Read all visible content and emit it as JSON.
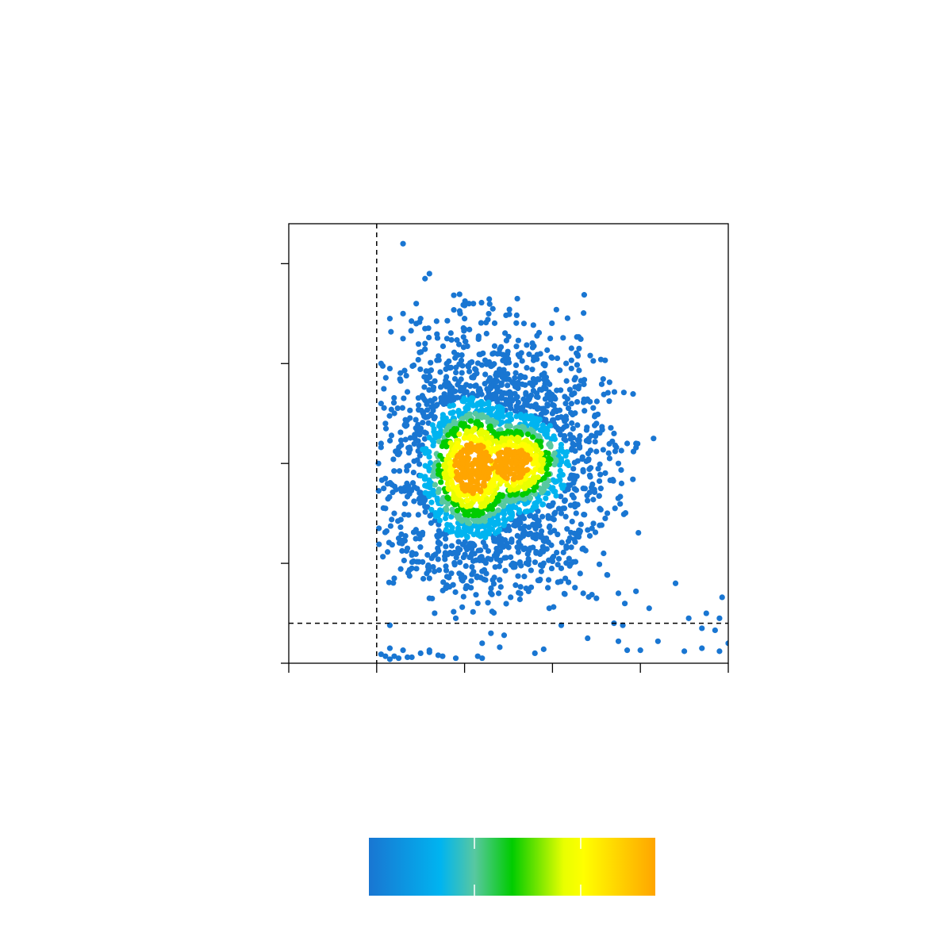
{
  "chart_data": {
    "type": "scatter",
    "title": "",
    "xlabel": "",
    "ylabel": "",
    "xlim": [
      0,
      5
    ],
    "ylim": [
      0,
      4.4
    ],
    "x_ticks": [
      0,
      1,
      2,
      3,
      4,
      5
    ],
    "y_ticks": [
      0,
      1,
      2,
      3,
      4
    ],
    "tick_labels_visible": false,
    "grid": false,
    "gates": {
      "x_threshold": 1.0,
      "y_threshold": 0.4
    },
    "colorbar": {
      "colors": [
        "#1976d2",
        "#00b4f0",
        "#58c8a0",
        "#00cc00",
        "#e8ff00",
        "#ffff00",
        "#ffa500"
      ],
      "ticks": 2,
      "labels_visible": false,
      "placement": "bottom"
    },
    "density_cores": [
      {
        "x": 2.1,
        "y": 1.95,
        "level": "peak"
      },
      {
        "x": 2.55,
        "y": 2.0,
        "level": "high"
      }
    ],
    "points_outliers": [
      [
        1.3,
        4.2
      ],
      [
        1.6,
        3.9
      ],
      [
        1.55,
        3.85
      ],
      [
        1.45,
        3.6
      ],
      [
        2.05,
        3.6
      ],
      [
        2.1,
        3.6
      ],
      [
        2.6,
        3.65
      ],
      [
        1.95,
        3.5
      ],
      [
        2.0,
        3.45
      ],
      [
        1.3,
        3.5
      ],
      [
        1.15,
        3.45
      ],
      [
        1.5,
        3.45
      ],
      [
        1.45,
        3.4
      ],
      [
        2.25,
        3.3
      ],
      [
        1.55,
        3.35
      ],
      [
        1.8,
        3.25
      ],
      [
        1.3,
        3.25
      ],
      [
        1.05,
        3.0
      ],
      [
        1.15,
        2.95
      ],
      [
        1.55,
        3.2
      ],
      [
        2.4,
        3.1
      ],
      [
        1.05,
        2.6
      ],
      [
        1.1,
        2.4
      ],
      [
        1.05,
        2.2
      ],
      [
        1.02,
        2.0
      ],
      [
        1.08,
        1.75
      ],
      [
        1.1,
        1.55
      ],
      [
        1.2,
        1.5
      ],
      [
        1.25,
        1.25
      ],
      [
        1.35,
        1.15
      ],
      [
        1.2,
        0.85
      ],
      [
        1.4,
        0.95
      ],
      [
        1.6,
        0.85
      ],
      [
        1.85,
        0.9
      ],
      [
        2.2,
        0.92
      ],
      [
        2.7,
        0.75
      ],
      [
        2.55,
        1.0
      ],
      [
        2.75,
        1.3
      ],
      [
        2.9,
        1.25
      ],
      [
        2.8,
        1.55
      ],
      [
        3.1,
        1.5
      ],
      [
        3.25,
        1.3
      ],
      [
        3.35,
        1.15
      ],
      [
        3.45,
        1.35
      ],
      [
        3.6,
        1.45
      ],
      [
        3.15,
        2.6
      ],
      [
        3.3,
        2.2
      ],
      [
        3.5,
        2.4
      ],
      [
        3.7,
        2.3
      ],
      [
        3.85,
        2.2
      ],
      [
        3.65,
        2.05
      ],
      [
        3.75,
        2.0
      ],
      [
        3.95,
        2.2
      ],
      [
        4.15,
        2.25
      ],
      [
        3.0,
        2.5
      ],
      [
        2.9,
        2.55
      ],
      [
        3.55,
        1.75
      ],
      [
        3.35,
        1.75
      ],
      [
        3.2,
        1.85
      ],
      [
        2.9,
        1.0
      ],
      [
        3.1,
        0.95
      ],
      [
        3.35,
        0.7
      ],
      [
        3.5,
        0.65
      ],
      [
        3.75,
        0.7
      ],
      [
        3.95,
        0.72
      ],
      [
        4.1,
        0.55
      ],
      [
        4.4,
        0.8
      ],
      [
        4.55,
        0.45
      ],
      [
        4.75,
        0.5
      ],
      [
        4.93,
        0.66
      ],
      [
        4.9,
        0.45
      ],
      [
        4.85,
        0.33
      ],
      [
        4.7,
        0.35
      ],
      [
        1.6,
        0.65
      ],
      [
        2.15,
        0.6
      ],
      [
        1.15,
        0.38
      ],
      [
        1.9,
        0.45
      ],
      [
        2.3,
        0.3
      ],
      [
        2.45,
        0.28
      ],
      [
        3.1,
        0.38
      ],
      [
        3.4,
        0.25
      ],
      [
        3.7,
        0.4
      ],
      [
        3.8,
        0.38
      ],
      [
        3.75,
        0.22
      ],
      [
        3.85,
        0.13
      ],
      [
        4.0,
        0.13
      ],
      [
        4.2,
        0.22
      ],
      [
        4.5,
        0.12
      ],
      [
        4.7,
        0.15
      ],
      [
        4.9,
        0.12
      ],
      [
        5.0,
        0.2
      ],
      [
        2.4,
        0.16
      ],
      [
        2.2,
        0.2
      ],
      [
        2.8,
        0.1
      ],
      [
        2.9,
        0.14
      ],
      [
        2.2,
        0.05
      ],
      [
        2.15,
        0.07
      ],
      [
        1.9,
        0.05
      ],
      [
        1.6,
        0.13
      ],
      [
        1.7,
        0.08
      ],
      [
        1.75,
        0.07
      ],
      [
        1.6,
        0.11
      ],
      [
        1.3,
        0.13
      ],
      [
        1.5,
        0.1
      ],
      [
        1.05,
        0.09
      ],
      [
        1.1,
        0.07
      ],
      [
        1.15,
        0.04
      ],
      [
        1.25,
        0.05
      ],
      [
        1.35,
        0.06
      ],
      [
        1.15,
        0.15
      ],
      [
        1.2,
        0.07
      ],
      [
        1.4,
        0.06
      ]
    ]
  }
}
